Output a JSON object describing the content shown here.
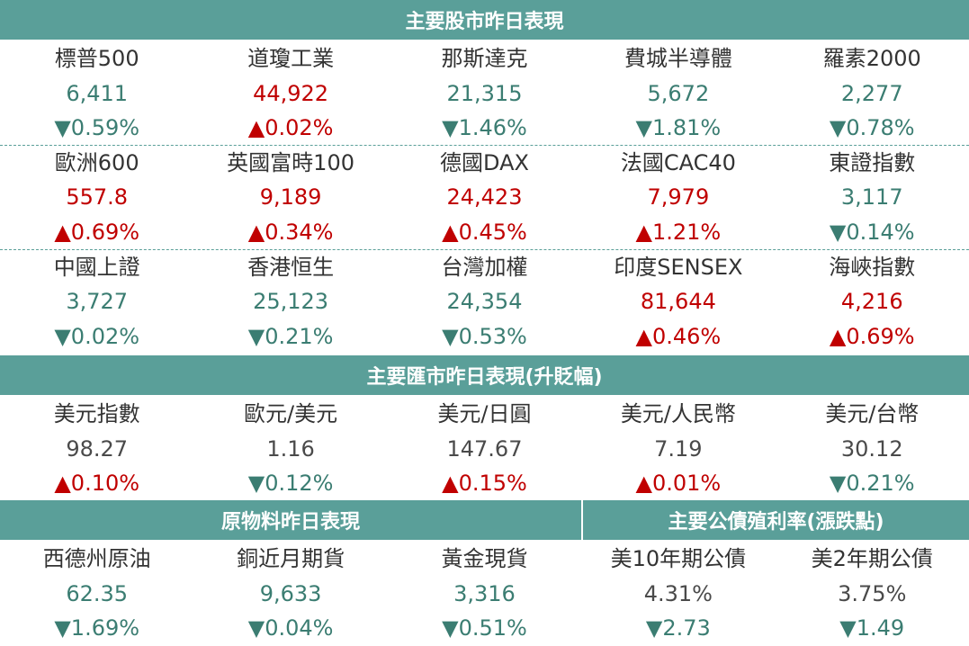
{
  "stocks": {
    "title": "主要股市昨日表現",
    "rows": [
      [
        {
          "name": "標普500",
          "value": "6,411",
          "change": "▼0.59%",
          "dir": "down"
        },
        {
          "name": "道瓊工業",
          "value": "44,922",
          "change": "▲0.02%",
          "dir": "up"
        },
        {
          "name": "那斯達克",
          "value": "21,315",
          "change": "▼1.46%",
          "dir": "down"
        },
        {
          "name": "費城半導體",
          "value": "5,672",
          "change": "▼1.81%",
          "dir": "down"
        },
        {
          "name": "羅素2000",
          "value": "2,277",
          "change": "▼0.78%",
          "dir": "down"
        }
      ],
      [
        {
          "name": "歐洲600",
          "value": "557.8",
          "change": "▲0.69%",
          "dir": "up"
        },
        {
          "name": "英國富時100",
          "value": "9,189",
          "change": "▲0.34%",
          "dir": "up"
        },
        {
          "name": "德國DAX",
          "value": "24,423",
          "change": "▲0.45%",
          "dir": "up"
        },
        {
          "name": "法國CAC40",
          "value": "7,979",
          "change": "▲1.21%",
          "dir": "up"
        },
        {
          "name": "東證指數",
          "value": "3,117",
          "change": "▼0.14%",
          "dir": "down"
        }
      ],
      [
        {
          "name": "中國上證",
          "value": "3,727",
          "change": "▼0.02%",
          "dir": "down"
        },
        {
          "name": "香港恒生",
          "value": "25,123",
          "change": "▼0.21%",
          "dir": "down"
        },
        {
          "name": "台灣加權",
          "value": "24,354",
          "change": "▼0.53%",
          "dir": "down"
        },
        {
          "name": "印度SENSEX",
          "value": "81,644",
          "change": "▲0.46%",
          "dir": "up"
        },
        {
          "name": "海峽指數",
          "value": "4,216",
          "change": "▲0.69%",
          "dir": "up"
        }
      ]
    ]
  },
  "forex": {
    "title": "主要匯市昨日表現(升貶幅)",
    "rows": [
      [
        {
          "name": "美元指數",
          "value": "98.27",
          "change": "▲0.10%",
          "dir": "up"
        },
        {
          "name": "歐元/美元",
          "value": "1.16",
          "change": "▼0.12%",
          "dir": "down"
        },
        {
          "name": "美元/日圓",
          "value": "147.67",
          "change": "▲0.15%",
          "dir": "up"
        },
        {
          "name": "美元/人民幣",
          "value": "7.19",
          "change": "▲0.01%",
          "dir": "up"
        },
        {
          "name": "美元/台幣",
          "value": "30.12",
          "change": "▼0.21%",
          "dir": "down"
        }
      ]
    ]
  },
  "commodities": {
    "title": "原物料昨日表現",
    "items": [
      {
        "name": "西德州原油",
        "value": "62.35",
        "change": "▼1.69%",
        "dir": "down"
      },
      {
        "name": "銅近月期貨",
        "value": "9,633",
        "change": "▼0.04%",
        "dir": "down"
      },
      {
        "name": "黃金現貨",
        "value": "3,316",
        "change": "▼0.51%",
        "dir": "down"
      }
    ]
  },
  "bonds": {
    "title": "主要公債殖利率(漲跌點)",
    "items": [
      {
        "name": "美10年期公債",
        "value": "4.31%",
        "change": "▼2.73",
        "dir": "down"
      },
      {
        "name": "美2年期公債",
        "value": "3.75%",
        "change": "▼1.49",
        "dir": "down"
      }
    ]
  }
}
